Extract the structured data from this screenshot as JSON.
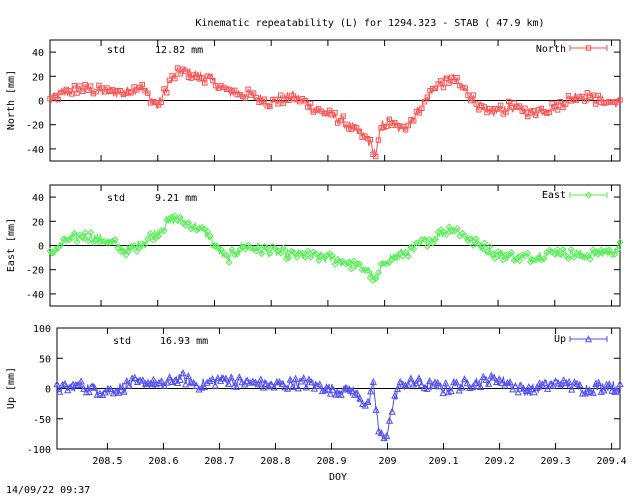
{
  "header": {
    "title": "Kinematic repeatability (L) for 1294.323 - STAB  ( 47.9 km)"
  },
  "footer": {
    "timestamp": "14/09/22 09:37"
  },
  "chart_data": [
    {
      "type": "line",
      "name": "north",
      "ylabel": "North [mm]",
      "std_label": "std",
      "std_value": "12.82 mm",
      "legend": "North",
      "color": "#ff5050",
      "marker": "square",
      "ylim": [
        -50,
        50
      ],
      "yticks": [
        -40,
        -20,
        0,
        20,
        40
      ],
      "xlim": [
        208.41,
        209.415
      ],
      "x": [
        208.41,
        208.43,
        208.46,
        208.5,
        208.54,
        208.57,
        208.6,
        208.62,
        208.64,
        208.66,
        208.69,
        208.72,
        208.76,
        208.8,
        208.84,
        208.88,
        208.92,
        208.95,
        208.97,
        208.985,
        208.995,
        209.01,
        209.03,
        209.06,
        209.09,
        209.12,
        209.15,
        209.18,
        209.22,
        209.26,
        209.3,
        209.34,
        209.38,
        209.415
      ],
      "values": [
        0,
        5,
        10,
        8,
        6,
        12,
        -5,
        15,
        25,
        22,
        18,
        8,
        5,
        -2,
        4,
        -8,
        -15,
        -25,
        -32,
        -45,
        -20,
        -18,
        -25,
        -8,
        12,
        18,
        5,
        -12,
        -5,
        -10,
        -5,
        5,
        0,
        -2
      ]
    },
    {
      "type": "line",
      "name": "east",
      "ylabel": "East [mm]",
      "std_label": "std",
      "std_value": "9.21 mm",
      "legend": "East",
      "color": "#50f050",
      "marker": "diamond",
      "ylim": [
        -50,
        50
      ],
      "yticks": [
        -40,
        -20,
        0,
        20,
        40
      ],
      "xlim": [
        208.41,
        209.415
      ],
      "x": [
        208.41,
        208.44,
        208.48,
        208.52,
        208.55,
        208.58,
        208.61,
        208.63,
        208.66,
        208.69,
        208.72,
        208.75,
        208.8,
        208.85,
        208.9,
        208.94,
        208.97,
        208.985,
        209.0,
        209.04,
        209.08,
        209.12,
        209.16,
        209.2,
        209.25,
        209.3,
        209.35,
        209.4,
        209.415
      ],
      "values": [
        -8,
        5,
        8,
        2,
        -5,
        5,
        15,
        22,
        18,
        8,
        -12,
        0,
        -5,
        -8,
        -10,
        -15,
        -20,
        -30,
        -12,
        -5,
        5,
        15,
        2,
        -8,
        -10,
        -5,
        -8,
        -5,
        0
      ]
    },
    {
      "type": "line",
      "name": "up",
      "ylabel": "Up [mm]",
      "std_label": "std",
      "std_value": "16.93 mm",
      "legend": "Up",
      "color": "#5050f0",
      "marker": "triangle",
      "ylim": [
        -100,
        100
      ],
      "yticks": [
        -100,
        -50,
        0,
        50,
        100
      ],
      "xlim": [
        208.41,
        209.415
      ],
      "xlabel": "DOY",
      "xticks": [
        208.5,
        208.6,
        208.7,
        208.8,
        208.9,
        209,
        209.1,
        209.2,
        209.3,
        209.4
      ],
      "xtick_labels": [
        "208.5",
        "208.6",
        "208.7",
        "208.8",
        "208.9",
        "209",
        "209.1",
        "209.2",
        "209.3",
        "209.4"
      ],
      "x": [
        208.41,
        208.45,
        208.5,
        208.55,
        208.6,
        208.63,
        208.66,
        208.7,
        208.75,
        208.8,
        208.85,
        208.9,
        208.94,
        208.965,
        208.975,
        208.985,
        208.995,
        209.005,
        209.02,
        209.05,
        209.1,
        209.15,
        209.2,
        209.25,
        209.3,
        209.35,
        209.4,
        209.415
      ],
      "values": [
        0,
        5,
        -5,
        10,
        5,
        20,
        5,
        15,
        10,
        5,
        10,
        0,
        -5,
        -30,
        5,
        -75,
        -88,
        -45,
        5,
        10,
        0,
        10,
        15,
        -5,
        10,
        0,
        5,
        0
      ]
    }
  ]
}
